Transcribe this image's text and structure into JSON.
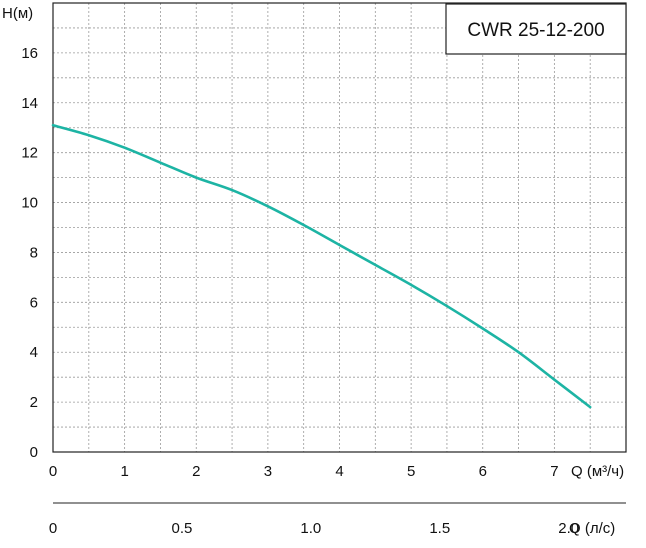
{
  "chart_data": {
    "type": "line",
    "title": "CWR 25-12-200",
    "ylabel": "H(м)",
    "xlabel": "Q (м³/ч)",
    "x2label": "Q (л/с)",
    "ylim": [
      0,
      18
    ],
    "xlim": [
      0,
      8
    ],
    "y_ticks": [
      0,
      2,
      4,
      6,
      8,
      10,
      12,
      14,
      16
    ],
    "x_ticks": [
      0,
      1,
      2,
      3,
      4,
      5,
      6,
      7
    ],
    "x2_ticks": [
      "0",
      "0.5",
      "1.0",
      "1.5",
      "2.0"
    ],
    "x2_tick_values_m3h": [
      0,
      1.8,
      3.6,
      5.4,
      7.2
    ],
    "grid": true,
    "series": [
      {
        "color": "#1db4a4",
        "x": [
          0,
          0.5,
          1,
          1.5,
          2,
          2.5,
          3,
          3.5,
          4,
          4.5,
          5,
          5.5,
          6,
          6.5,
          7,
          7.5
        ],
        "y": [
          13.1,
          12.7,
          12.2,
          11.6,
          11.0,
          10.5,
          9.85,
          9.1,
          8.3,
          7.5,
          6.7,
          5.85,
          4.95,
          4.0,
          2.9,
          1.8
        ]
      }
    ]
  }
}
